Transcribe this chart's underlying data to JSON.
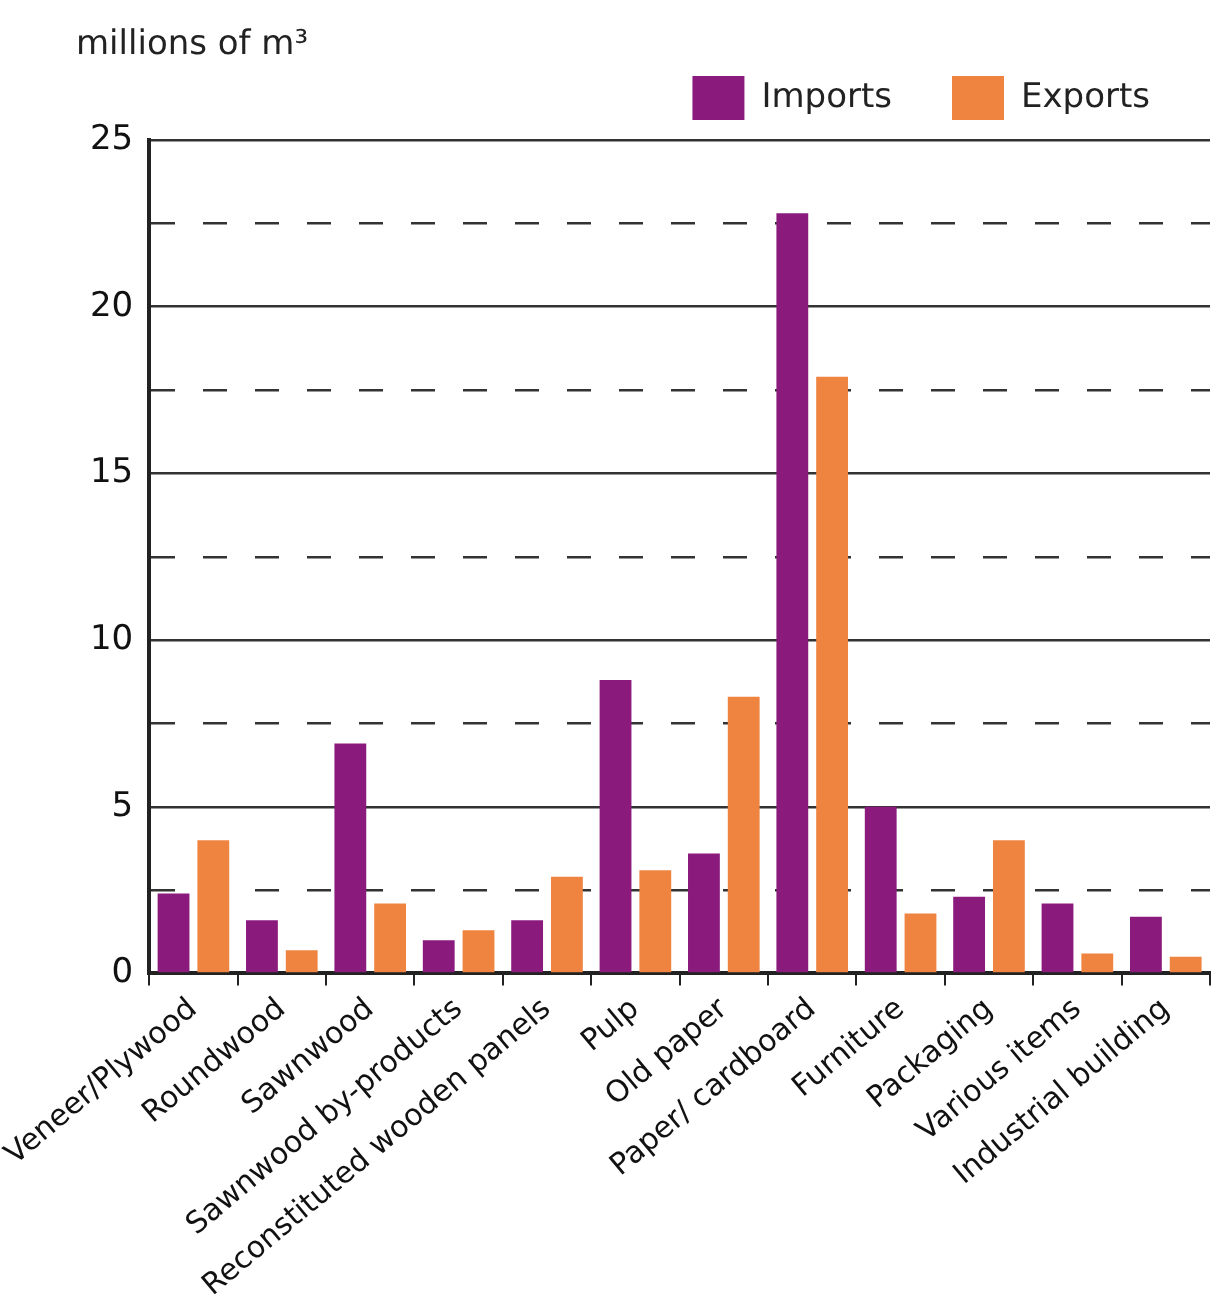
{
  "chart_data": {
    "type": "bar",
    "ylabel": "millions of m³",
    "categories": [
      "Veneer/Plywood",
      "Roundwood",
      "Sawnwood",
      "Sawnwood by-products",
      "Reconstituted wooden panels",
      "Pulp",
      "Old paper",
      "Paper/ cardboard",
      "Furniture",
      "Packaging",
      "Various items",
      "Industrial building"
    ],
    "series": [
      {
        "name": "Imports",
        "color": "#8b1a7d",
        "values": [
          2.4,
          1.6,
          6.9,
          1.0,
          1.6,
          8.8,
          3.6,
          22.8,
          5.0,
          2.3,
          2.1,
          1.7
        ]
      },
      {
        "name": "Exports",
        "color": "#ee8440",
        "values": [
          4.0,
          0.7,
          2.1,
          1.3,
          2.9,
          3.1,
          8.3,
          17.9,
          1.8,
          4.0,
          0.6,
          0.5
        ]
      }
    ],
    "ylim": [
      0,
      25
    ],
    "yticks": [
      0,
      {
        "value": 2.5,
        "label": null
      },
      5,
      {
        "value": 7.5,
        "label": null
      },
      10,
      {
        "value": 12.5,
        "label": null
      },
      15,
      {
        "value": 17.5,
        "label": null
      },
      20,
      {
        "value": 22.5,
        "label": null
      },
      25
    ],
    "grid": "y",
    "legend": "top"
  }
}
